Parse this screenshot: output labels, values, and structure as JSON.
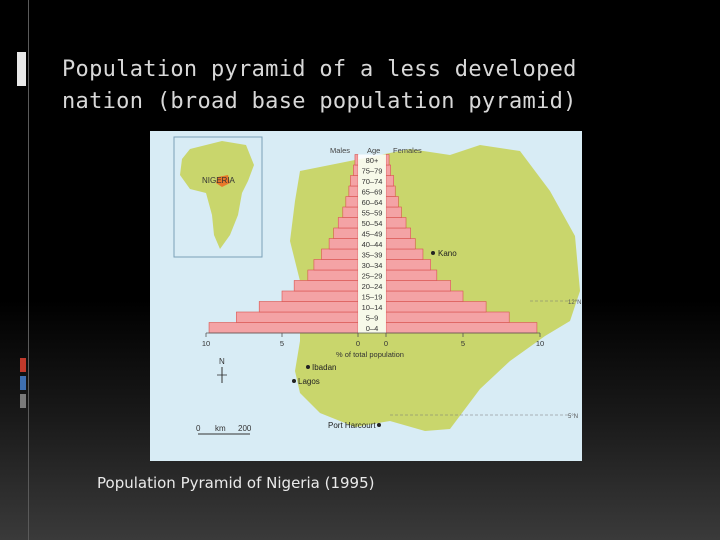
{
  "slide": {
    "title_line1": "Population pyramid of a less developed",
    "title_line2": "nation (broad base population pyramid)",
    "caption": "Population Pyramid of Nigeria (1995)"
  },
  "colors": {
    "background": "#000000",
    "map_land": "#c9d66c",
    "map_sea": "#d8ecf5",
    "bar_fill": "#f4a3a5",
    "bar_stroke": "#d9534f",
    "nigeria_inset": "#e8782a"
  },
  "map_labels": {
    "inset_country": "NIGERIA",
    "city_kano": "Kano",
    "city_ibadan": "Ibadan",
    "city_lagos": "Lagos",
    "city_port_harcourt": "Port Harcourt",
    "lat_12": "12°N",
    "lat_5": "5°N",
    "north": "N",
    "scale_0": "0",
    "scale_unit": "km",
    "scale_200": "200"
  },
  "chart_data": {
    "type": "bar",
    "orientation": "horizontal-pyramid",
    "header_left": "Males",
    "header_center": "Age",
    "header_right": "Females",
    "xlabel": "% of total population",
    "x_ticks": [
      "10",
      "5",
      "0",
      "0",
      "5",
      "10"
    ],
    "xlim": [
      0,
      10
    ],
    "categories": [
      "0–4",
      "5–9",
      "10–14",
      "15–19",
      "20–24",
      "25–29",
      "30–34",
      "35–39",
      "40–44",
      "45–49",
      "50–54",
      "55–59",
      "60–64",
      "65–69",
      "70–74",
      "75–79",
      "80+"
    ],
    "series": [
      {
        "name": "Males",
        "values": [
          9.8,
          8.0,
          6.5,
          5.0,
          4.2,
          3.3,
          2.9,
          2.4,
          1.9,
          1.6,
          1.3,
          1.0,
          0.8,
          0.6,
          0.5,
          0.3,
          0.2
        ]
      },
      {
        "name": "Females",
        "values": [
          9.8,
          8.0,
          6.5,
          5.0,
          4.2,
          3.3,
          2.9,
          2.4,
          1.9,
          1.6,
          1.3,
          1.0,
          0.8,
          0.6,
          0.5,
          0.3,
          0.2
        ]
      }
    ]
  }
}
